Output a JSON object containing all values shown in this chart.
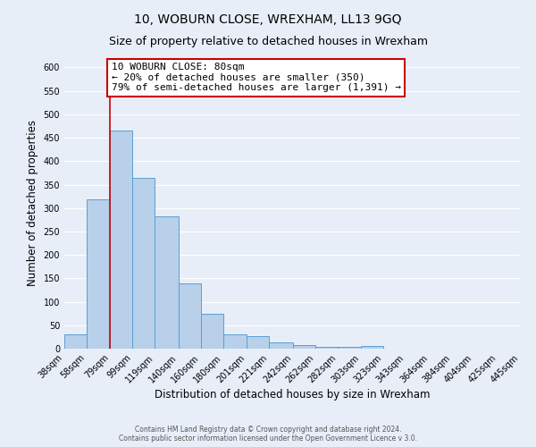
{
  "title": "10, WOBURN CLOSE, WREXHAM, LL13 9GQ",
  "subtitle": "Size of property relative to detached houses in Wrexham",
  "xlabel": "Distribution of detached houses by size in Wrexham",
  "ylabel": "Number of detached properties",
  "bar_values": [
    30,
    318,
    465,
    365,
    283,
    140,
    75,
    30,
    27,
    13,
    7,
    4,
    4,
    5,
    0,
    0,
    0,
    0,
    0,
    0
  ],
  "bin_edges": [
    38,
    58,
    79,
    99,
    119,
    140,
    160,
    180,
    201,
    221,
    242,
    262,
    282,
    303,
    323,
    343,
    364,
    384,
    404,
    425,
    445
  ],
  "bin_labels": [
    "38sqm",
    "58sqm",
    "79sqm",
    "99sqm",
    "119sqm",
    "140sqm",
    "160sqm",
    "180sqm",
    "201sqm",
    "221sqm",
    "242sqm",
    "262sqm",
    "282sqm",
    "303sqm",
    "323sqm",
    "343sqm",
    "364sqm",
    "384sqm",
    "404sqm",
    "425sqm",
    "445sqm"
  ],
  "bar_color": "#b8d0ea",
  "bar_edge_color": "#5a9fd4",
  "property_line_x": 79,
  "property_line_color": "#cc0000",
  "annotation_line1": "10 WOBURN CLOSE: 80sqm",
  "annotation_line2": "← 20% of detached houses are smaller (350)",
  "annotation_line3": "79% of semi-detached houses are larger (1,391) →",
  "annotation_box_color": "#ffffff",
  "annotation_box_edge_color": "#cc0000",
  "ylim": [
    0,
    620
  ],
  "yticks": [
    0,
    50,
    100,
    150,
    200,
    250,
    300,
    350,
    400,
    450,
    500,
    550,
    600
  ],
  "background_color": "#e8eef8",
  "grid_color": "#ffffff",
  "footer_line1": "Contains HM Land Registry data © Crown copyright and database right 2024.",
  "footer_line2": "Contains public sector information licensed under the Open Government Licence v 3.0.",
  "title_fontsize": 10,
  "subtitle_fontsize": 9,
  "axis_label_fontsize": 8.5,
  "tick_fontsize": 7,
  "annotation_fontsize": 8,
  "footer_fontsize": 5.5
}
